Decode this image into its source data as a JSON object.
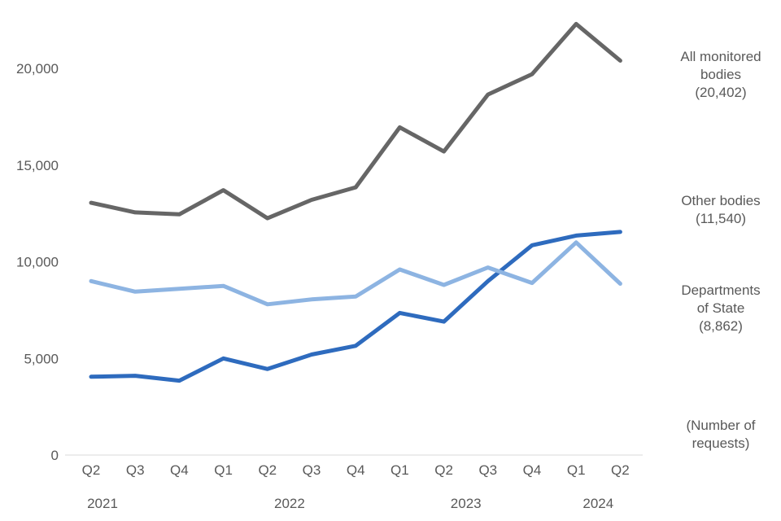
{
  "chart_data": {
    "type": "line",
    "categories": [
      "Q2",
      "Q3",
      "Q4",
      "Q1",
      "Q2",
      "Q3",
      "Q4",
      "Q1",
      "Q2",
      "Q3",
      "Q4",
      "Q1",
      "Q2"
    ],
    "years": [
      {
        "label": "2021",
        "start": 0,
        "end": 2
      },
      {
        "label": "2022",
        "start": 3,
        "end": 6
      },
      {
        "label": "2023",
        "start": 7,
        "end": 10
      },
      {
        "label": "2024",
        "start": 11,
        "end": 12
      }
    ],
    "ylim": [
      0,
      22000
    ],
    "yticks": [
      {
        "value": 0,
        "label": "0"
      },
      {
        "value": 5000,
        "label": "5,000"
      },
      {
        "value": 10000,
        "label": "10,000"
      },
      {
        "value": 15000,
        "label": "15,000"
      },
      {
        "value": 20000,
        "label": "20,000"
      }
    ],
    "grid": false,
    "series": [
      {
        "key": "all",
        "label_lines": [
          "All monitored",
          "bodies",
          "(20,402)"
        ],
        "color": "#666666",
        "values": [
          13050,
          12550,
          12450,
          13700,
          12250,
          13200,
          13850,
          16950,
          15700,
          18650,
          19700,
          22300,
          20402
        ]
      },
      {
        "key": "other",
        "label_lines": [
          "Other bodies",
          "(11,540)"
        ],
        "color": "#2E6BBE",
        "values": [
          4050,
          4100,
          3850,
          5000,
          4450,
          5200,
          5650,
          7350,
          6900,
          9000,
          10850,
          11350,
          11540
        ]
      },
      {
        "key": "departments",
        "label_lines": [
          "Departments",
          "of State",
          "(8,862)"
        ],
        "color": "#8DB4E2",
        "values": [
          9000,
          8450,
          8600,
          8750,
          7800,
          8050,
          8200,
          9600,
          8800,
          9700,
          8900,
          11000,
          8862
        ]
      }
    ],
    "unit_note_lines": [
      "(Number of",
      "requests)"
    ]
  }
}
